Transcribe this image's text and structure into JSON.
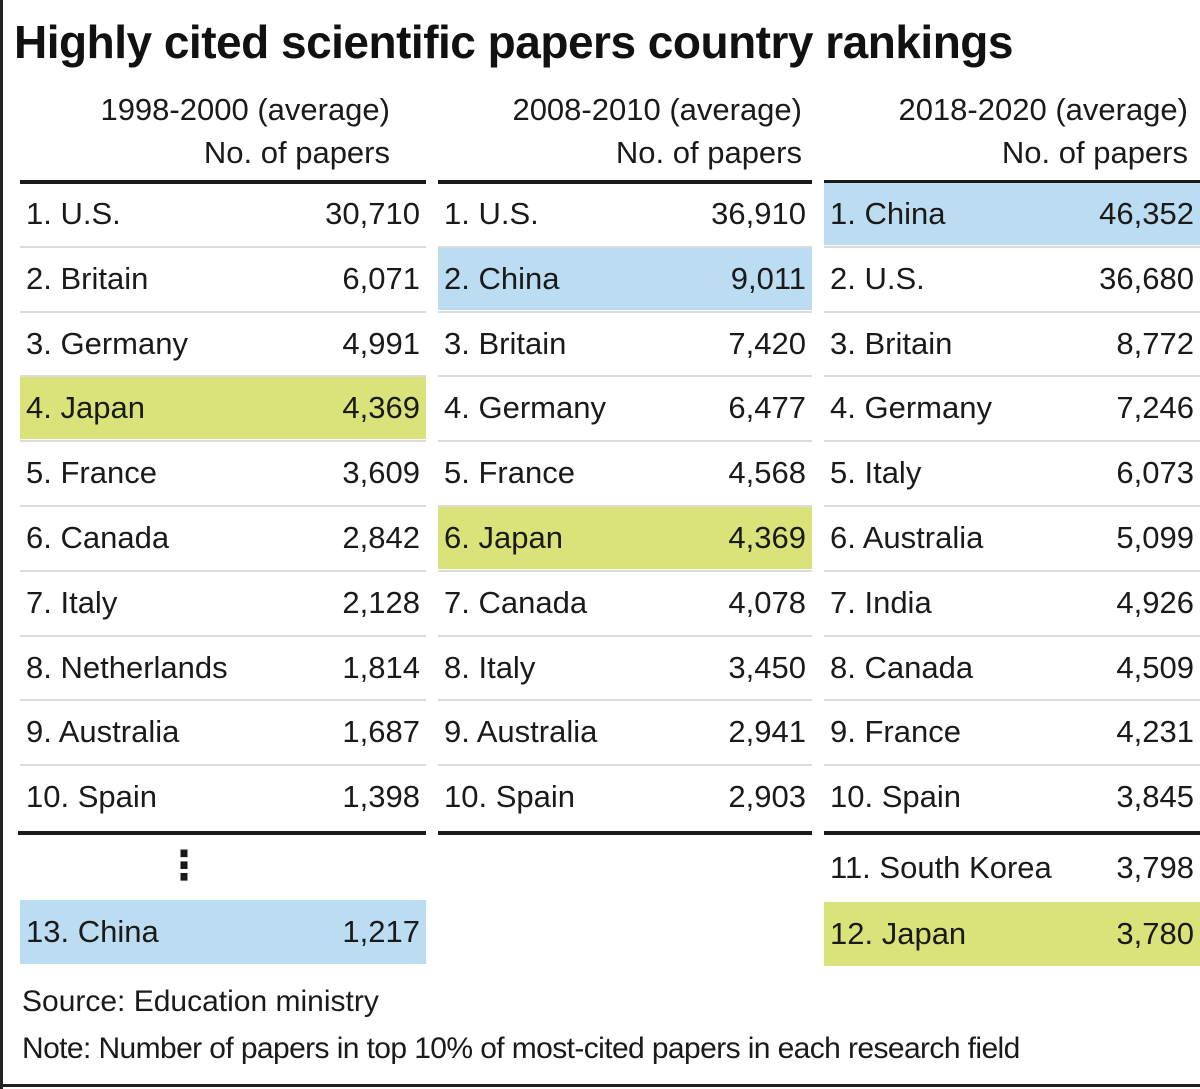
{
  "chart_data": {
    "type": "table",
    "title": "Highly cited scientific papers country rankings",
    "value_label": "No. of papers",
    "periods": [
      {
        "label": "1998-2000 (average)",
        "rows": [
          {
            "rank": "1.",
            "country": "U.S.",
            "value": "30,710"
          },
          {
            "rank": "2.",
            "country": "Britain",
            "value": "6,071"
          },
          {
            "rank": "3.",
            "country": "Germany",
            "value": "4,991"
          },
          {
            "rank": "4.",
            "country": "Japan",
            "value": "4,369",
            "highlight": "yellow"
          },
          {
            "rank": "5.",
            "country": "France",
            "value": "3,609"
          },
          {
            "rank": "6.",
            "country": "Canada",
            "value": "2,842"
          },
          {
            "rank": "7.",
            "country": "Italy",
            "value": "2,128"
          },
          {
            "rank": "8.",
            "country": "Netherlands",
            "value": "1,814"
          },
          {
            "rank": "9.",
            "country": "Australia",
            "value": "1,687"
          },
          {
            "rank": "10.",
            "country": "Spain",
            "value": "1,398"
          }
        ],
        "extra_ellipsis": "⋮",
        "extra_rows": [
          {
            "rank": "13.",
            "country": "China",
            "value": "1,217",
            "highlight": "blue"
          }
        ]
      },
      {
        "label": "2008-2010 (average)",
        "rows": [
          {
            "rank": "1.",
            "country": "U.S.",
            "value": "36,910"
          },
          {
            "rank": "2.",
            "country": "China",
            "value": "9,011",
            "highlight": "blue"
          },
          {
            "rank": "3.",
            "country": "Britain",
            "value": "7,420"
          },
          {
            "rank": "4.",
            "country": "Germany",
            "value": "6,477"
          },
          {
            "rank": "5.",
            "country": "France",
            "value": "4,568"
          },
          {
            "rank": "6.",
            "country": "Japan",
            "value": "4,369",
            "highlight": "yellow"
          },
          {
            "rank": "7.",
            "country": "Canada",
            "value": "4,078"
          },
          {
            "rank": "8.",
            "country": "Italy",
            "value": "3,450"
          },
          {
            "rank": "9.",
            "country": "Australia",
            "value": "2,941"
          },
          {
            "rank": "10.",
            "country": "Spain",
            "value": "2,903"
          }
        ],
        "extra_rows": []
      },
      {
        "label": "2018-2020 (average)",
        "rows": [
          {
            "rank": "1.",
            "country": "China",
            "value": "46,352",
            "highlight": "blue"
          },
          {
            "rank": "2.",
            "country": "U.S.",
            "value": "36,680"
          },
          {
            "rank": "3.",
            "country": "Britain",
            "value": "8,772"
          },
          {
            "rank": "4.",
            "country": "Germany",
            "value": "7,246"
          },
          {
            "rank": "5.",
            "country": "Italy",
            "value": "6,073"
          },
          {
            "rank": "6.",
            "country": "Australia",
            "value": "5,099"
          },
          {
            "rank": "7.",
            "country": "India",
            "value": "4,926"
          },
          {
            "rank": "8.",
            "country": "Canada",
            "value": "4,509"
          },
          {
            "rank": "9.",
            "country": "France",
            "value": "4,231"
          },
          {
            "rank": "10.",
            "country": "Spain",
            "value": "3,845"
          }
        ],
        "extra_rows": [
          {
            "rank": "11.",
            "country": "South Korea",
            "value": "3,798"
          },
          {
            "rank": "12.",
            "country": "Japan",
            "value": "3,780",
            "highlight": "yellow"
          }
        ]
      }
    ],
    "source": "Source: Education ministry",
    "note": "Note:  Number of papers in top 10% of most-cited papers in each research field",
    "colors": {
      "blue_highlight": "#bcdcf1",
      "yellow_highlight": "#d9e37a"
    }
  }
}
